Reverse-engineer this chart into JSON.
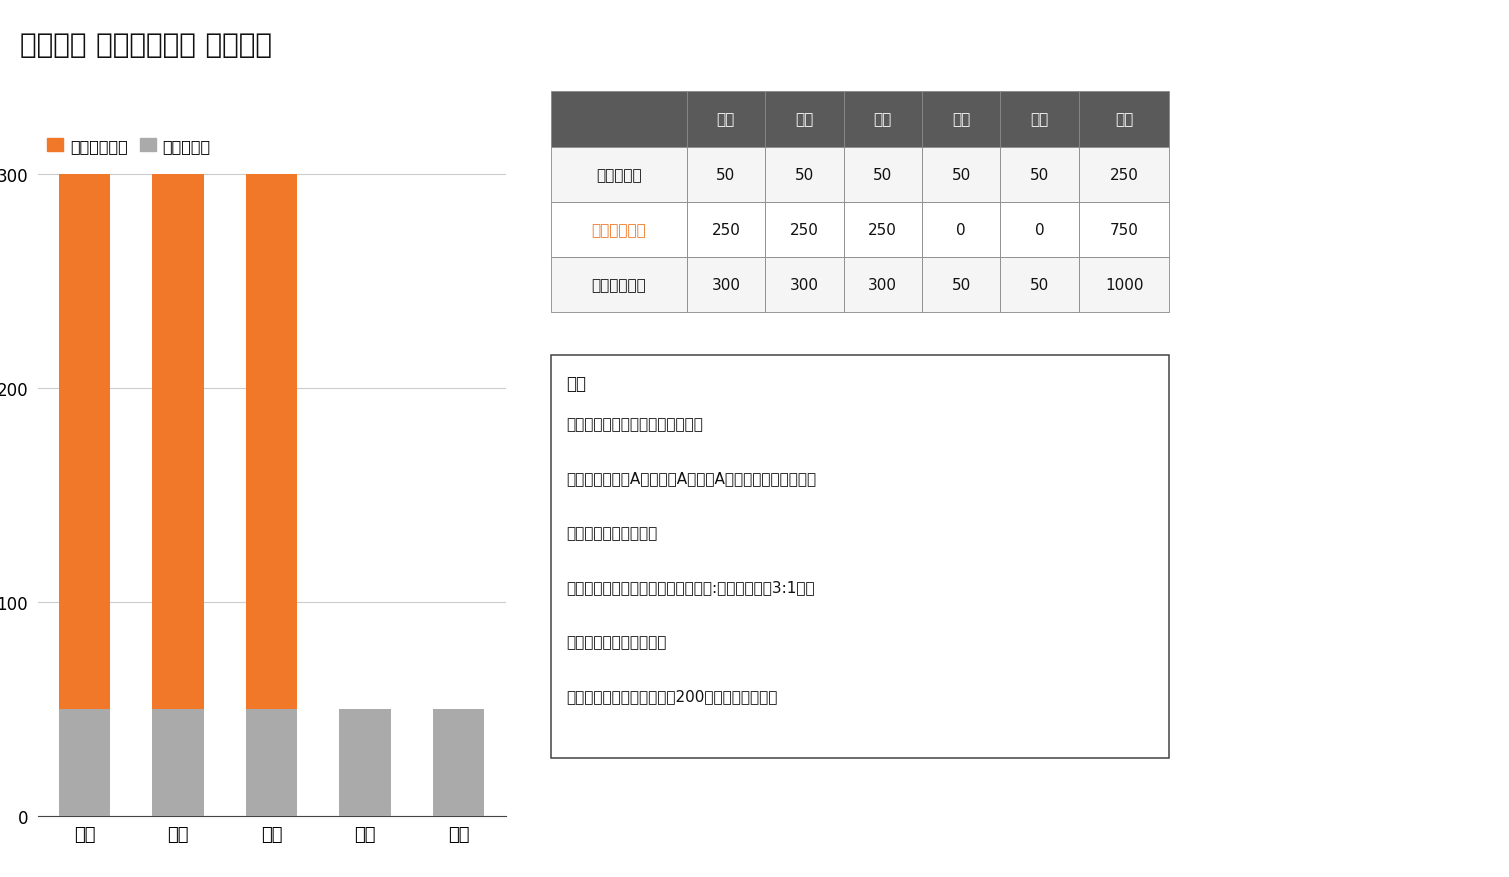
{
  "title": "東北大学 医学部医学科 前期日程",
  "title_fontsize": 20,
  "categories": [
    "数学",
    "英語",
    "理科",
    "国語",
    "社会"
  ],
  "kobetsu": [
    250,
    250,
    250,
    0,
    0
  ],
  "kyotsu": [
    50,
    50,
    50,
    50,
    50
  ],
  "color_kobetsu": "#F07828",
  "color_kyotsu": "#AAAAAA",
  "legend_kobetsu": "個別学力試験",
  "legend_kyotsu": "共通テスト",
  "ylim": [
    0,
    320
  ],
  "yticks": [
    0,
    100,
    200,
    300
  ],
  "background_color": "#FFFFFF",
  "chart_bg": "#FFFFFF",
  "table_header_bg": "#5A5A5A",
  "table_header_fg": "#FFFFFF",
  "table_row1_label": "共通テスト",
  "table_row2_label": "個別学力試験",
  "table_row2_color": "#F07828",
  "table_row3_label": "教科合計配点",
  "table_cols": [
    "数学",
    "英語",
    "理科",
    "国語",
    "社会",
    "合計"
  ],
  "table_data": [
    [
      50,
      50,
      50,
      50,
      50,
      250
    ],
    [
      250,
      250,
      250,
      0,
      0,
      750
    ],
    [
      300,
      300,
      300,
      50,
      50,
      1000
    ]
  ],
  "note_title": "備考",
  "note_lines": [
    "・理科は地学の選択が不可です。",
    "・社会は世界史A、日本史A、地理A、現代社会、倫理、政",
    "経の選択が不可です。",
    "・共通テストの英語はリーディング:リスニング＝3:1の傾",
    "斜配点になっています。",
    "・個別学力試験には面接（200点）があります。"
  ]
}
